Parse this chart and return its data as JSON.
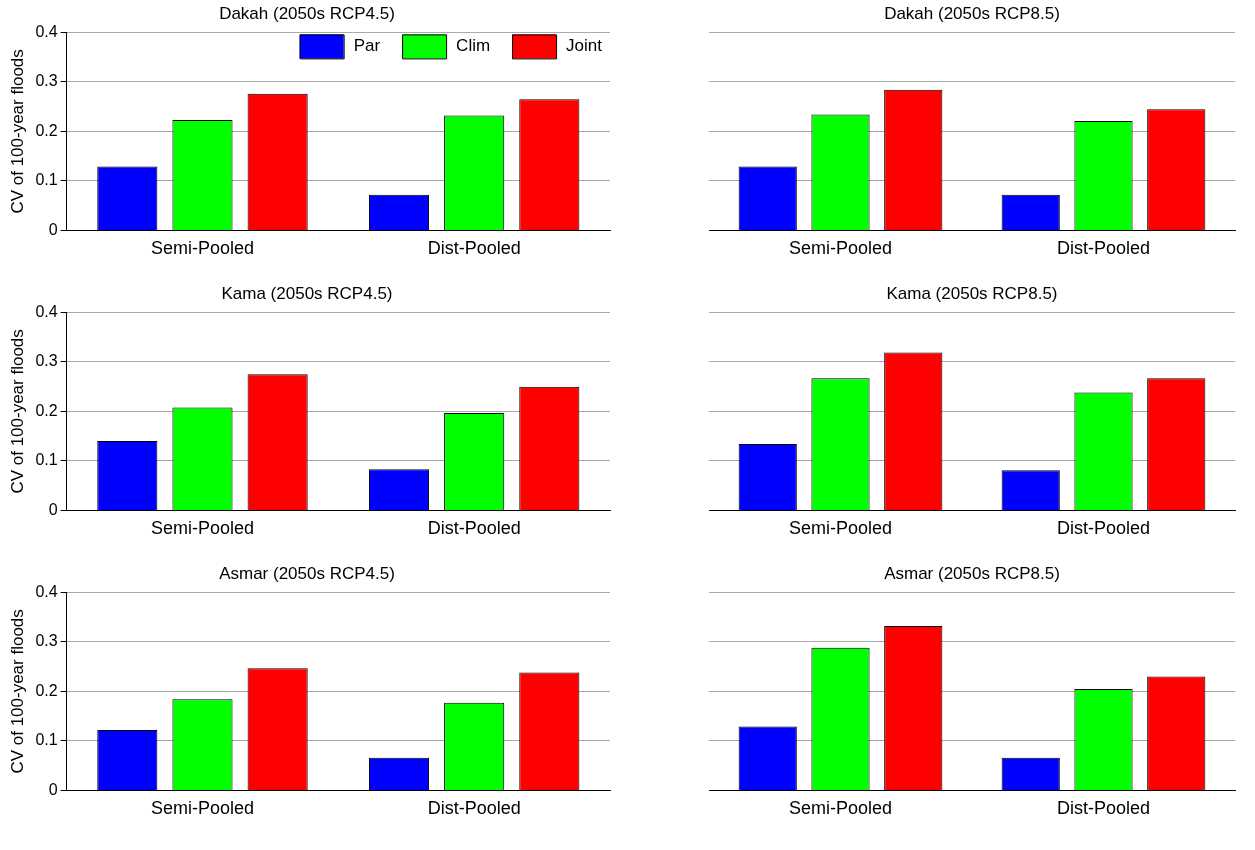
{
  "chart_data": [
    {
      "type": "bar",
      "title": "Dakah (2050s RCP4.5)",
      "ylabel": "CV of 100-year floods",
      "categories": [
        "Semi-Pooled",
        "Dist-Pooled"
      ],
      "ylim": [
        0,
        0.4
      ],
      "yticks": [
        0,
        0.1,
        0.2,
        0.3,
        0.4
      ],
      "grid": "y",
      "legend": "top right",
      "series": [
        {
          "name": "Par",
          "color": "#0000ff",
          "values": [
            0.129,
            0.072
          ]
        },
        {
          "name": "Clim",
          "color": "#00ff00",
          "values": [
            0.223,
            0.232
          ]
        },
        {
          "name": "Joint",
          "color": "#ff0000",
          "values": [
            0.276,
            0.265
          ]
        }
      ]
    },
    {
      "type": "bar",
      "title": "Dakah (2050s RCP8.5)",
      "categories": [
        "Semi-Pooled",
        "Dist-Pooled"
      ],
      "ylim": [
        0,
        0.4
      ],
      "yticks": [
        0,
        0.1,
        0.2,
        0.3,
        0.4
      ],
      "grid": "y",
      "tick_labels": "x",
      "series": [
        {
          "color": "#0000ff",
          "values": [
            0.129,
            0.072
          ]
        },
        {
          "color": "#00ff00",
          "values": [
            0.234,
            0.221
          ]
        },
        {
          "color": "#ff0000",
          "values": [
            0.284,
            0.245
          ]
        }
      ]
    },
    {
      "type": "bar",
      "title": "Kama (2050s RCP4.5)",
      "ylabel": "CV of 100-year floods",
      "categories": [
        "Semi-Pooled",
        "Dist-Pooled"
      ],
      "ylim": [
        0,
        0.4
      ],
      "yticks": [
        0,
        0.1,
        0.2,
        0.3,
        0.4
      ],
      "grid": "y",
      "series": [
        {
          "color": "#0000ff",
          "values": [
            0.14,
            0.083
          ]
        },
        {
          "color": "#00ff00",
          "values": [
            0.208,
            0.197
          ]
        },
        {
          "color": "#ff0000",
          "values": [
            0.275,
            0.25
          ]
        }
      ]
    },
    {
      "type": "bar",
      "title": "Kama (2050s RCP8.5)",
      "categories": [
        "Semi-Pooled",
        "Dist-Pooled"
      ],
      "ylim": [
        0,
        0.4
      ],
      "yticks": [
        0,
        0.1,
        0.2,
        0.3,
        0.4
      ],
      "grid": "y",
      "tick_labels": "x",
      "series": [
        {
          "color": "#0000ff",
          "values": [
            0.134,
            0.081
          ]
        },
        {
          "color": "#00ff00",
          "values": [
            0.267,
            0.238
          ]
        },
        {
          "color": "#ff0000",
          "values": [
            0.319,
            0.267
          ]
        }
      ]
    },
    {
      "type": "bar",
      "title": "Asmar (2050s RCP4.5)",
      "ylabel": "CV of 100-year floods",
      "categories": [
        "Semi-Pooled",
        "Dist-Pooled"
      ],
      "ylim": [
        0,
        0.4
      ],
      "yticks": [
        0,
        0.1,
        0.2,
        0.3,
        0.4
      ],
      "grid": "y",
      "series": [
        {
          "color": "#0000ff",
          "values": [
            0.122,
            0.066
          ]
        },
        {
          "color": "#00ff00",
          "values": [
            0.184,
            0.177
          ]
        },
        {
          "color": "#ff0000",
          "values": [
            0.247,
            0.238
          ]
        }
      ]
    },
    {
      "type": "bar",
      "title": "Asmar (2050s RCP8.5)",
      "categories": [
        "Semi-Pooled",
        "Dist-Pooled"
      ],
      "ylim": [
        0,
        0.4
      ],
      "yticks": [
        0,
        0.1,
        0.2,
        0.3,
        0.4
      ],
      "grid": "y",
      "tick_labels": "x",
      "series": [
        {
          "color": "#0000ff",
          "values": [
            0.129,
            0.066
          ]
        },
        {
          "color": "#00ff00",
          "values": [
            0.288,
            0.205
          ]
        },
        {
          "color": "#ff0000",
          "values": [
            0.332,
            0.23
          ]
        }
      ]
    }
  ]
}
